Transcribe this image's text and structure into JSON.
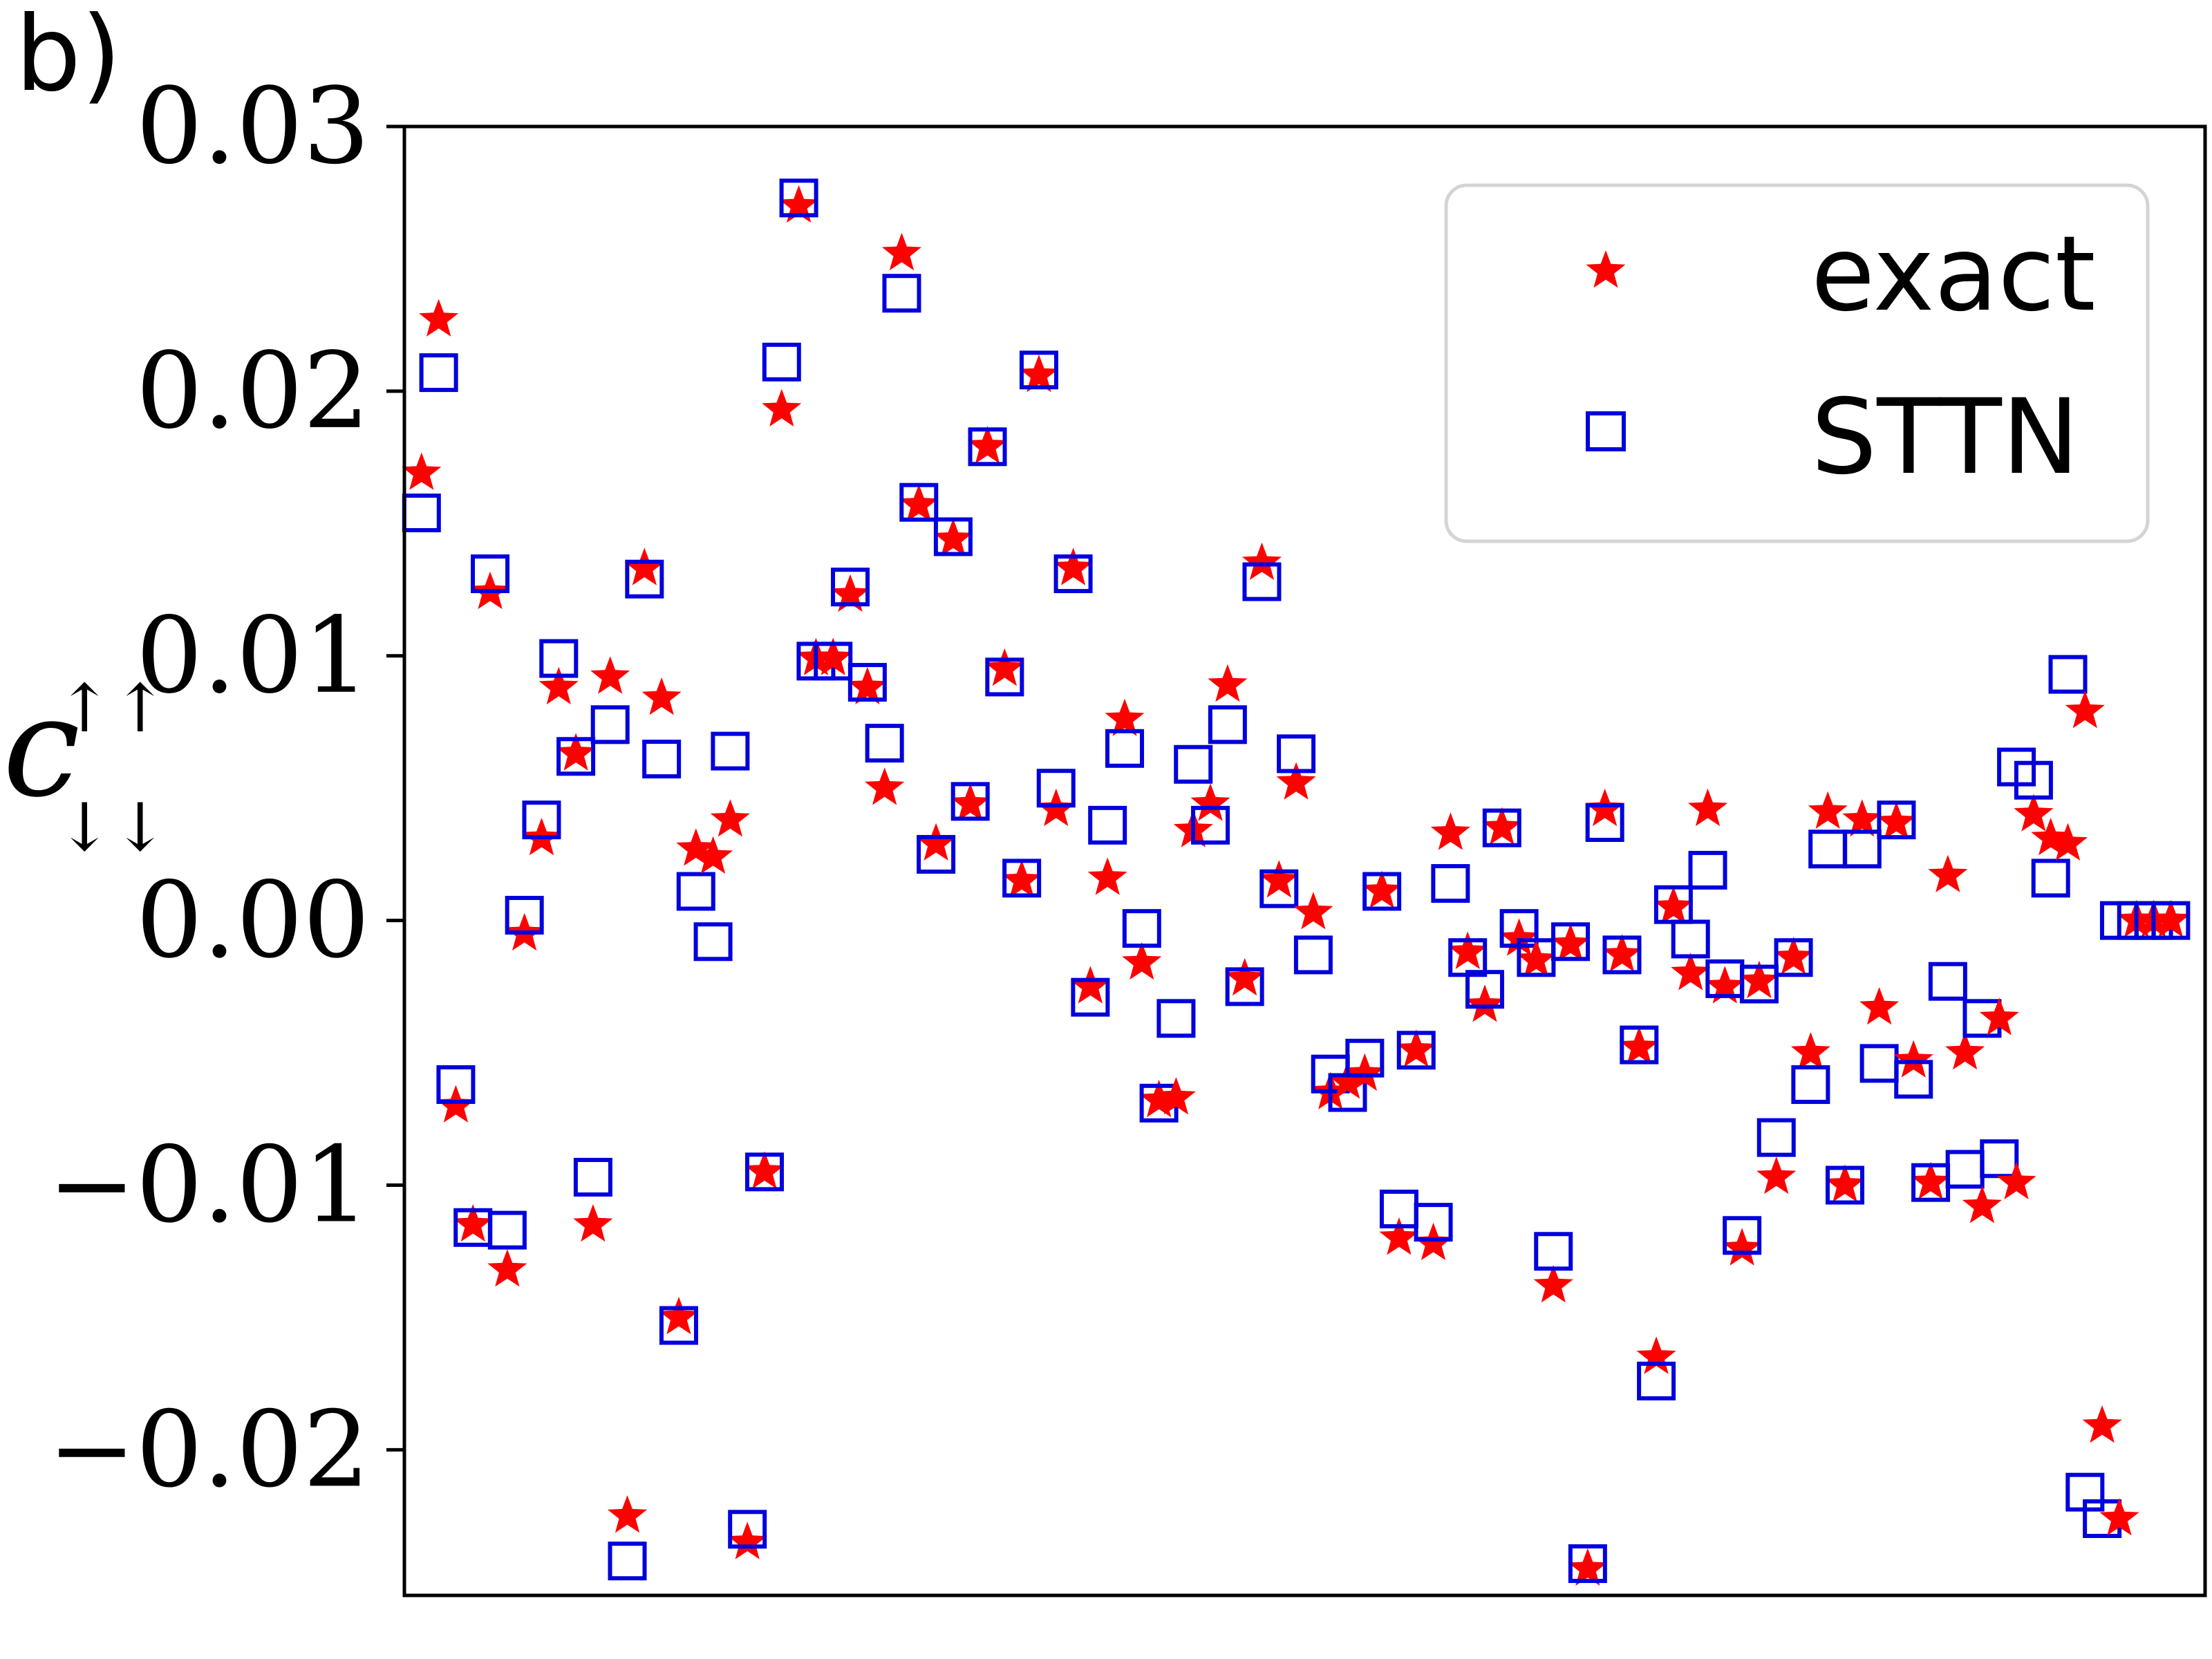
{
  "panel_label": "b)",
  "chart_data": {
    "type": "scatter",
    "title": "",
    "xlabel": "",
    "ylabel_main": "c",
    "ylabel_sup": "↑↑",
    "ylabel_sub": "↓↓",
    "ylim": [
      -0.0255,
      0.03
    ],
    "yticks": [
      {
        "value": 0.03,
        "label": "0.03"
      },
      {
        "value": 0.02,
        "label": "0.02"
      },
      {
        "value": 0.01,
        "label": "0.01"
      },
      {
        "value": 0.0,
        "label": "0.00"
      },
      {
        "value": -0.01,
        "label": "−0.01"
      },
      {
        "value": -0.02,
        "label": "−0.02"
      }
    ],
    "xlim": [
      0,
      105
    ],
    "grid": false,
    "legend_position": "top-right",
    "colors": {
      "exact": "#ff0000",
      "sttn": "#0000dd"
    },
    "x": [
      1,
      2,
      3,
      4,
      5,
      6,
      7,
      8,
      9,
      10,
      11,
      12,
      13,
      14,
      15,
      16,
      17,
      18,
      19,
      20,
      21,
      22,
      23,
      24,
      25,
      26,
      27,
      28,
      29,
      30,
      31,
      32,
      33,
      34,
      35,
      36,
      37,
      38,
      39,
      40,
      41,
      42,
      43,
      44,
      45,
      46,
      47,
      48,
      49,
      50,
      51,
      52,
      53,
      54,
      55,
      56,
      57,
      58,
      59,
      60,
      61,
      62,
      63,
      64,
      65,
      66,
      67,
      68,
      69,
      70,
      71,
      72,
      73,
      74,
      75,
      76,
      77,
      78,
      79,
      80,
      81,
      82,
      83,
      84,
      85,
      86,
      87,
      88,
      89,
      90,
      91,
      92,
      93,
      94,
      95,
      96,
      97,
      98,
      99,
      100,
      101,
      102,
      103,
      104
    ],
    "series": [
      {
        "name": "exact",
        "marker": "star",
        "values": [
          0.0169,
          0.0227,
          -0.007,
          -0.0115,
          0.0124,
          -0.0132,
          -0.0005,
          0.0031,
          0.0088,
          0.0063,
          -0.0115,
          0.0092,
          -0.0225,
          0.0133,
          0.0084,
          -0.015,
          0.0027,
          0.0024,
          0.0038,
          -0.0235,
          -0.0095,
          0.0193,
          0.027,
          0.0099,
          0.0099,
          0.0123,
          0.0088,
          0.005,
          0.0252,
          0.0157,
          0.0029,
          0.0144,
          0.0044,
          0.0179,
          0.0095,
          0.0015,
          0.0206,
          0.0042,
          0.0133,
          -0.0025,
          0.0016,
          0.0076,
          -0.0016,
          -0.0068,
          -0.0067,
          0.0034,
          0.0044,
          0.0089,
          -0.0022,
          0.0135,
          0.0015,
          0.0052,
          0.0003,
          -0.0065,
          -0.0061,
          -0.0058,
          0.0011,
          -0.012,
          -0.0049,
          -0.0122,
          0.0033,
          -0.0012,
          -0.0032,
          0.0035,
          -0.0007,
          -0.0015,
          -0.0138,
          -0.0009,
          -0.0245,
          0.0042,
          -0.0013,
          -0.0048,
          -0.0165,
          0.0005,
          -0.002,
          0.0042,
          -0.0025,
          -0.0124,
          -0.0023,
          -0.0097,
          -0.0014,
          -0.005,
          0.0041,
          -0.01,
          0.0038,
          -0.0033,
          0.0037,
          -0.0053,
          -0.0099,
          0.0017,
          -0.005,
          -0.0108,
          -0.0037,
          -0.0099,
          0.004,
          0.0031,
          0.0029,
          0.0079,
          -0.0191,
          -0.0226,
          0.0,
          0.0,
          0.0,
          0.0
        ]
      },
      {
        "name": "STTN",
        "marker": "square",
        "values": [
          0.0154,
          0.0207,
          -0.0062,
          -0.0116,
          0.0131,
          -0.0117,
          0.0002,
          0.0038,
          0.0099,
          0.0062,
          -0.0097,
          0.0074,
          -0.0242,
          0.0129,
          0.0061,
          -0.0153,
          0.0011,
          -0.0008,
          0.0064,
          -0.023,
          -0.0095,
          0.0211,
          0.0273,
          0.0098,
          0.0098,
          0.0126,
          0.009,
          0.0067,
          0.0237,
          0.0158,
          0.0025,
          0.0145,
          0.0045,
          0.0179,
          0.0092,
          0.0016,
          0.0208,
          0.005,
          0.0131,
          -0.0029,
          0.0036,
          0.0065,
          -0.0003,
          -0.0069,
          -0.0037,
          0.0059,
          0.0036,
          0.0074,
          -0.0025,
          0.0128,
          0.0012,
          0.0063,
          -0.0013,
          -0.0058,
          -0.0065,
          -0.0052,
          0.0011,
          -0.0109,
          -0.0049,
          -0.0114,
          0.0014,
          -0.0014,
          -0.0026,
          0.0035,
          -0.0003,
          -0.0014,
          -0.0125,
          -0.0008,
          -0.0243,
          0.0037,
          -0.0013,
          -0.0047,
          -0.0174,
          0.0006,
          -0.0007,
          0.0019,
          -0.0022,
          -0.0119,
          -0.0024,
          -0.0082,
          -0.0014,
          -0.0062,
          0.0027,
          -0.01,
          0.0027,
          -0.0054,
          0.0038,
          -0.006,
          -0.0099,
          -0.0023,
          -0.0094,
          -0.0037,
          -0.009,
          0.0058,
          0.0053,
          0.0016,
          0.0093,
          -0.0216,
          -0.0226,
          0.0,
          0.0,
          0.0,
          0.0
        ]
      }
    ]
  }
}
